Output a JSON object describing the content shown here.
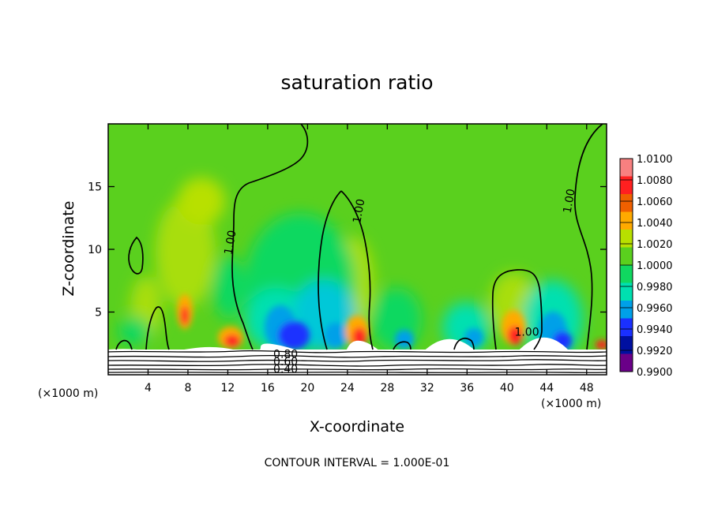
{
  "chart_data": {
    "type": "heatmap",
    "title": "saturation ratio",
    "xlabel": "X-coordinate",
    "ylabel": "Z-coordinate",
    "x_unit": "(×1000 m)",
    "x_unit_right": "(×1000 m)",
    "xlim": [
      0,
      50
    ],
    "ylim": [
      0,
      20
    ],
    "x_ticks": [
      4,
      8,
      12,
      16,
      20,
      24,
      28,
      32,
      36,
      40,
      44,
      48
    ],
    "y_ticks": [
      5,
      10,
      15
    ],
    "contour_interval": "CONTOUR INTERVAL = 1.000E-01",
    "colorbar": {
      "levels": [
        "1.0100",
        "1.0080",
        "1.0060",
        "1.0040",
        "1.0020",
        "1.0000",
        "0.9980",
        "0.9960",
        "0.9940",
        "0.9920",
        "0.9900"
      ],
      "colors": [
        "#f88080",
        "#ff2020",
        "#f06000",
        "#ffaa00",
        "#b8e000",
        "#5ad01e",
        "#10d860",
        "#00e0b0",
        "#00a0e8",
        "#1a30ff",
        "#0010a0",
        "#6a0088"
      ]
    },
    "contour_labels": [
      {
        "text": "1.00",
        "x": 12.6,
        "y": 10.5
      },
      {
        "text": "1.00",
        "x": 25.5,
        "y": 13.0
      },
      {
        "text": "1.00",
        "x": 46.6,
        "y": 13.8
      },
      {
        "text": "1.00",
        "x": 42.0,
        "y": 3.1
      },
      {
        "text": "0.80",
        "x": 17.8,
        "y": 1.35
      },
      {
        "text": "0.60",
        "x": 17.8,
        "y": 0.75
      },
      {
        "text": "0.40",
        "x": 17.8,
        "y": 0.15
      }
    ],
    "warm_anomalies": [
      {
        "x": 7.8,
        "z": 4.5,
        "value": 1.006
      },
      {
        "x": 12.8,
        "z": 2.6,
        "value": 1.007
      },
      {
        "x": 24.5,
        "z": 3.0,
        "value": 1.007
      },
      {
        "x": 40.5,
        "z": 3.2,
        "value": 1.007
      },
      {
        "x": 49.5,
        "z": 2.2,
        "value": 1.006
      }
    ],
    "dry_anomalies": [
      {
        "x": 17.5,
        "z": 3.5,
        "value": 0.993
      },
      {
        "x": 28.5,
        "z": 2.8,
        "value": 0.996
      },
      {
        "x": 44.5,
        "z": 2.8,
        "value": 0.993
      }
    ]
  }
}
